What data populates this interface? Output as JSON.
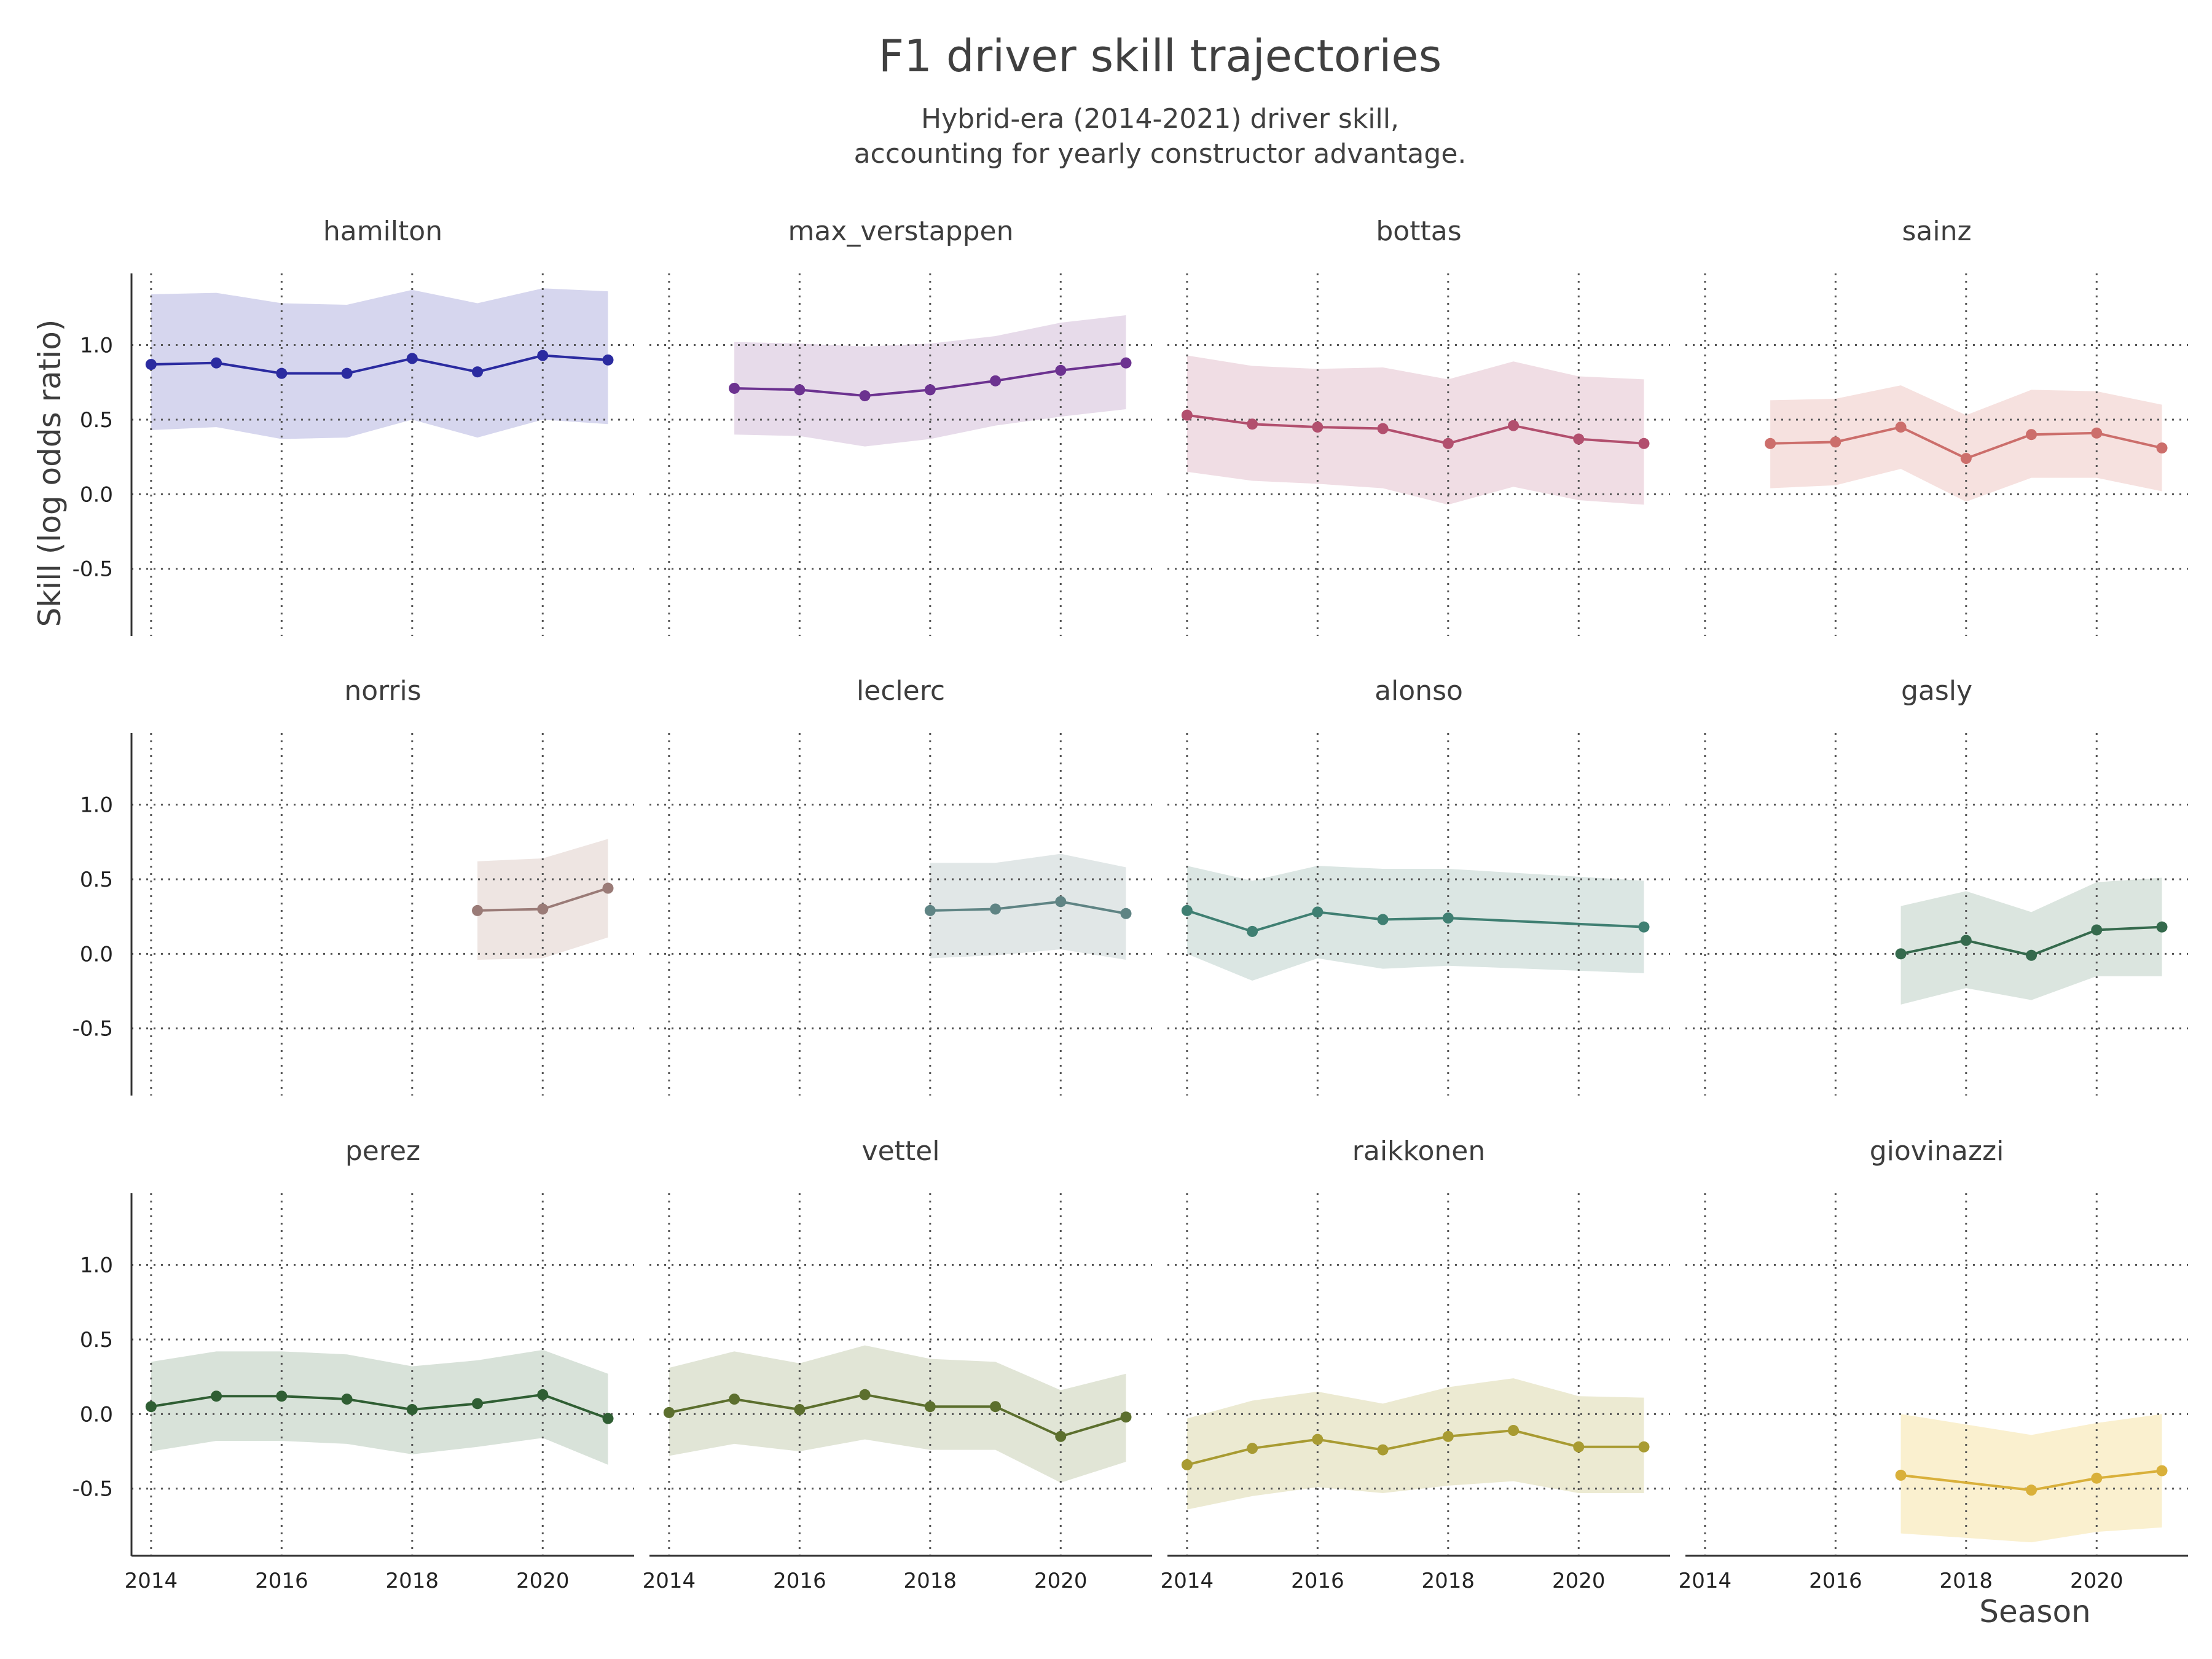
{
  "chart_data": {
    "type": "line",
    "title": "F1 driver skill trajectories",
    "subtitle": [
      "Hybrid-era (2014-2021) driver skill,",
      "accounting for yearly constructor advantage."
    ],
    "xlabel": "Season",
    "ylabel": "Skill (log odds ratio)",
    "xlim": [
      2013.7,
      2021.4
    ],
    "ylim": [
      -0.95,
      1.48
    ],
    "xticks": [
      2014,
      2016,
      2018,
      2020
    ],
    "yticks": [
      -0.5,
      0.0,
      0.5,
      1.0
    ],
    "ytick_labels": [
      "-0.5",
      "0.0",
      "0.5",
      "1.0"
    ],
    "grid": true,
    "legend": "none",
    "band": "uncertainty interval",
    "panels": [
      {
        "name": "hamilton",
        "color": "#2b2ba0",
        "band_color": "#d6d6ee",
        "x": [
          2014,
          2015,
          2016,
          2017,
          2018,
          2019,
          2020,
          2021
        ],
        "y": [
          0.87,
          0.88,
          0.81,
          0.81,
          0.91,
          0.82,
          0.93,
          0.9
        ],
        "lower": [
          0.43,
          0.45,
          0.37,
          0.38,
          0.5,
          0.38,
          0.5,
          0.47
        ],
        "upper": [
          1.34,
          1.35,
          1.28,
          1.27,
          1.37,
          1.28,
          1.38,
          1.36
        ]
      },
      {
        "name": "max_verstappen",
        "color": "#6c3290",
        "band_color": "#e7dbea",
        "x": [
          2015,
          2016,
          2017,
          2018,
          2019,
          2020,
          2021
        ],
        "y": [
          0.71,
          0.7,
          0.66,
          0.7,
          0.76,
          0.83,
          0.88
        ],
        "lower": [
          0.4,
          0.39,
          0.32,
          0.37,
          0.46,
          0.52,
          0.57
        ],
        "upper": [
          1.02,
          1.01,
          0.99,
          1.01,
          1.06,
          1.15,
          1.2
        ]
      },
      {
        "name": "bottas",
        "color": "#b24f6e",
        "band_color": "#f0dde4",
        "x": [
          2014,
          2015,
          2016,
          2017,
          2018,
          2019,
          2020,
          2021
        ],
        "y": [
          0.53,
          0.47,
          0.45,
          0.44,
          0.34,
          0.46,
          0.37,
          0.34
        ],
        "lower": [
          0.15,
          0.09,
          0.07,
          0.04,
          -0.07,
          0.05,
          -0.04,
          -0.07
        ],
        "upper": [
          0.93,
          0.86,
          0.84,
          0.85,
          0.77,
          0.89,
          0.79,
          0.77
        ]
      },
      {
        "name": "sainz",
        "color": "#cc6e6b",
        "band_color": "#f6e1df",
        "x": [
          2015,
          2016,
          2017,
          2018,
          2019,
          2020,
          2021
        ],
        "y": [
          0.34,
          0.35,
          0.45,
          0.24,
          0.4,
          0.41,
          0.31
        ],
        "lower": [
          0.04,
          0.06,
          0.17,
          -0.05,
          0.11,
          0.11,
          0.02
        ],
        "upper": [
          0.63,
          0.64,
          0.73,
          0.53,
          0.7,
          0.69,
          0.6
        ]
      },
      {
        "name": "norris",
        "color": "#9a7b77",
        "band_color": "#eee5e2",
        "x": [
          2019,
          2020,
          2021
        ],
        "y": [
          0.29,
          0.3,
          0.44
        ],
        "lower": [
          -0.04,
          -0.03,
          0.11
        ],
        "upper": [
          0.62,
          0.64,
          0.77
        ]
      },
      {
        "name": "leclerc",
        "color": "#5f8484",
        "band_color": "#e1e7e7",
        "x": [
          2018,
          2019,
          2020,
          2021
        ],
        "y": [
          0.29,
          0.3,
          0.35,
          0.27
        ],
        "lower": [
          -0.03,
          -0.01,
          0.03,
          -0.04
        ],
        "upper": [
          0.61,
          0.61,
          0.67,
          0.58
        ]
      },
      {
        "name": "alonso",
        "color": "#3f7f72",
        "band_color": "#dbe6e3",
        "x": [
          2014,
          2015,
          2016,
          2017,
          2018,
          2021
        ],
        "y": [
          0.29,
          0.15,
          0.28,
          0.23,
          0.24,
          0.18
        ],
        "lower": [
          0.0,
          -0.18,
          -0.03,
          -0.1,
          -0.08,
          -0.13
        ],
        "upper": [
          0.59,
          0.49,
          0.59,
          0.57,
          0.57,
          0.49
        ]
      },
      {
        "name": "gasly",
        "color": "#356a4d",
        "band_color": "#dbe5df",
        "x": [
          2017,
          2018,
          2019,
          2020,
          2021
        ],
        "y": [
          0.0,
          0.09,
          -0.01,
          0.16,
          0.18
        ],
        "lower": [
          -0.34,
          -0.23,
          -0.31,
          -0.15,
          -0.15
        ],
        "upper": [
          0.32,
          0.42,
          0.28,
          0.48,
          0.51
        ]
      },
      {
        "name": "perez",
        "color": "#2f5e33",
        "band_color": "#d8e2d9",
        "x": [
          2014,
          2015,
          2016,
          2017,
          2018,
          2019,
          2020,
          2021
        ],
        "y": [
          0.05,
          0.12,
          0.12,
          0.1,
          0.03,
          0.07,
          0.13,
          -0.03
        ],
        "lower": [
          -0.25,
          -0.18,
          -0.18,
          -0.2,
          -0.27,
          -0.22,
          -0.16,
          -0.34
        ],
        "upper": [
          0.35,
          0.42,
          0.42,
          0.4,
          0.32,
          0.36,
          0.43,
          0.27
        ]
      },
      {
        "name": "vettel",
        "color": "#5c6f2e",
        "band_color": "#e1e5d6",
        "x": [
          2014,
          2015,
          2016,
          2017,
          2018,
          2019,
          2020,
          2021
        ],
        "y": [
          0.01,
          0.1,
          0.03,
          0.13,
          0.05,
          0.05,
          -0.15,
          -0.02
        ],
        "lower": [
          -0.28,
          -0.2,
          -0.25,
          -0.17,
          -0.24,
          -0.24,
          -0.46,
          -0.32
        ],
        "upper": [
          0.31,
          0.42,
          0.34,
          0.46,
          0.37,
          0.35,
          0.16,
          0.27
        ]
      },
      {
        "name": "raikkonen",
        "color": "#a89b32",
        "band_color": "#ecead2",
        "x": [
          2014,
          2015,
          2016,
          2017,
          2018,
          2019,
          2020,
          2021
        ],
        "y": [
          -0.34,
          -0.23,
          -0.17,
          -0.24,
          -0.15,
          -0.11,
          -0.22,
          -0.22
        ],
        "lower": [
          -0.64,
          -0.55,
          -0.49,
          -0.53,
          -0.48,
          -0.45,
          -0.53,
          -0.53
        ],
        "upper": [
          -0.03,
          0.09,
          0.15,
          0.07,
          0.18,
          0.24,
          0.12,
          0.11
        ]
      },
      {
        "name": "giovinazzi",
        "color": "#d9b03a",
        "band_color": "#faf0cf",
        "x": [
          2017,
          2019,
          2020,
          2021
        ],
        "y": [
          -0.41,
          -0.51,
          -0.43,
          -0.38
        ],
        "lower": [
          -0.8,
          -0.86,
          -0.79,
          -0.76
        ],
        "upper": [
          0.0,
          -0.14,
          -0.06,
          0.0
        ]
      }
    ]
  }
}
